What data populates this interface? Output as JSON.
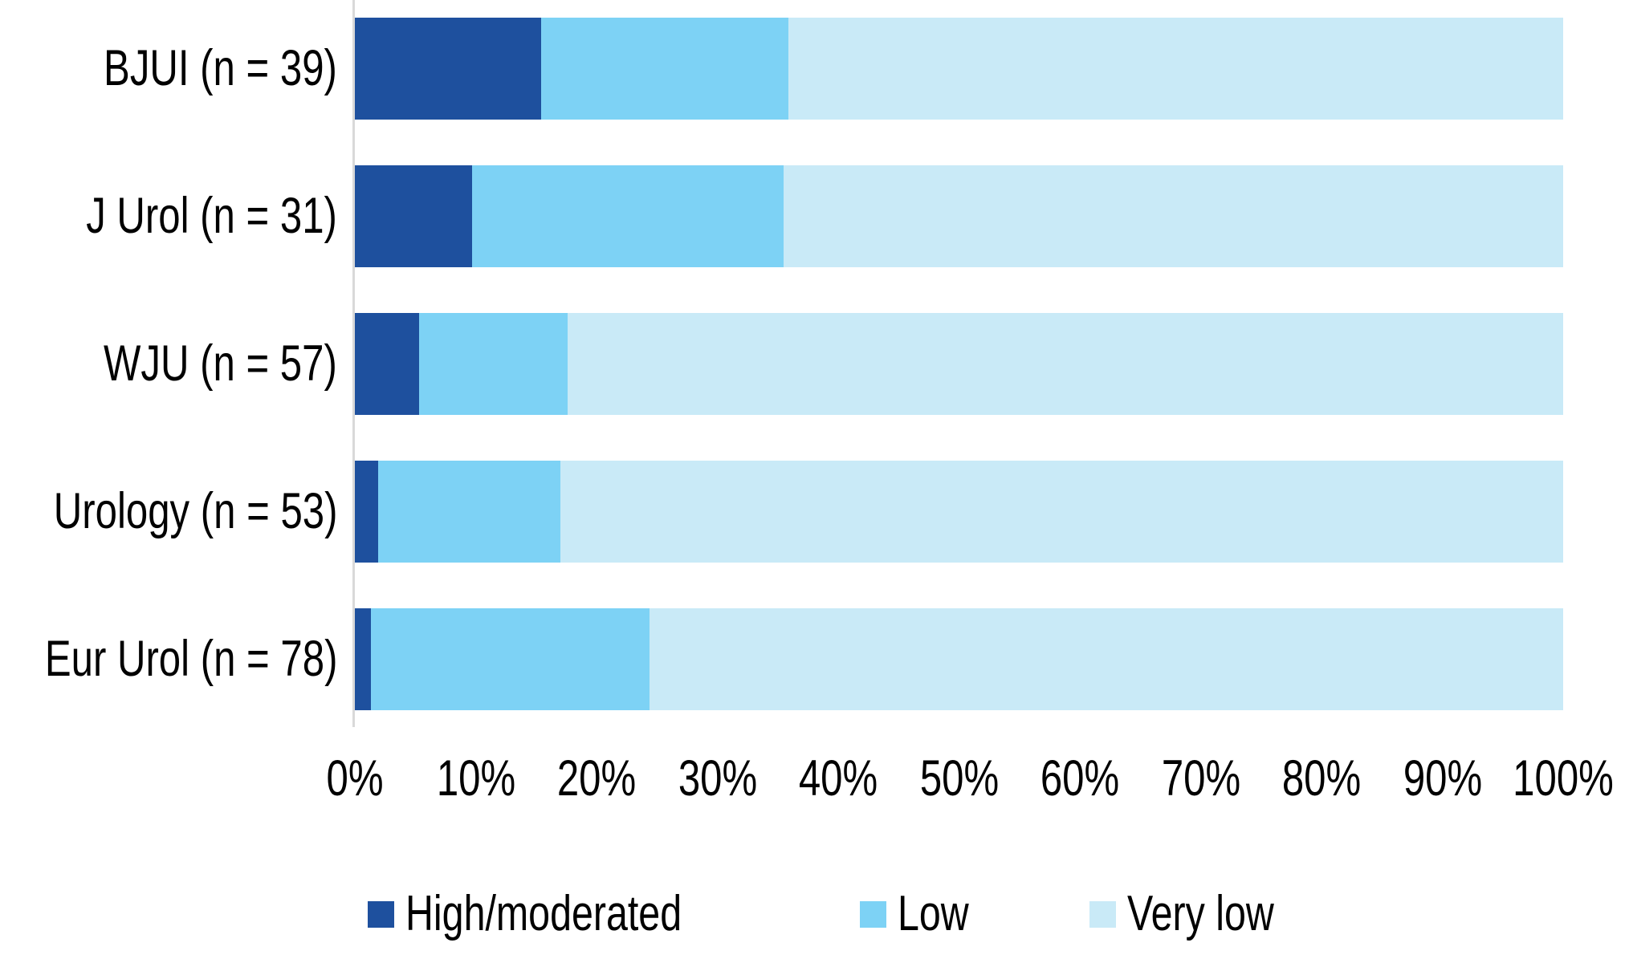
{
  "chart_data": {
    "type": "bar",
    "orientation": "horizontal",
    "stacked": true,
    "unit": "percent",
    "title": "",
    "xlabel": "",
    "ylabel": "",
    "grid": false,
    "legend_position": "bottom",
    "xlim": [
      0,
      100
    ],
    "categories": [
      "BJUI (n = 39)",
      "J Urol (n = 31)",
      "WJU (n = 57)",
      "Urology (n = 53)",
      "Eur Urol (n = 78)"
    ],
    "series": [
      {
        "name": "High/moderated",
        "color": "#1E509E",
        "values": [
          15.4,
          9.7,
          5.3,
          1.9,
          1.3
        ]
      },
      {
        "name": "Low",
        "color": "#7DD2F5",
        "values": [
          20.5,
          25.8,
          12.3,
          15.1,
          23.1
        ]
      },
      {
        "name": "Very low",
        "color": "#C9EAF7",
        "values": [
          64.1,
          64.5,
          82.5,
          83.0,
          75.6
        ]
      }
    ],
    "x_ticks": [
      "0%",
      "10%",
      "20%",
      "30%",
      "40%",
      "50%",
      "60%",
      "70%",
      "80%",
      "90%",
      "100%"
    ],
    "axis_line_color": "#D9D9D9",
    "text_color": "#000000",
    "background": "#FFFFFF"
  }
}
